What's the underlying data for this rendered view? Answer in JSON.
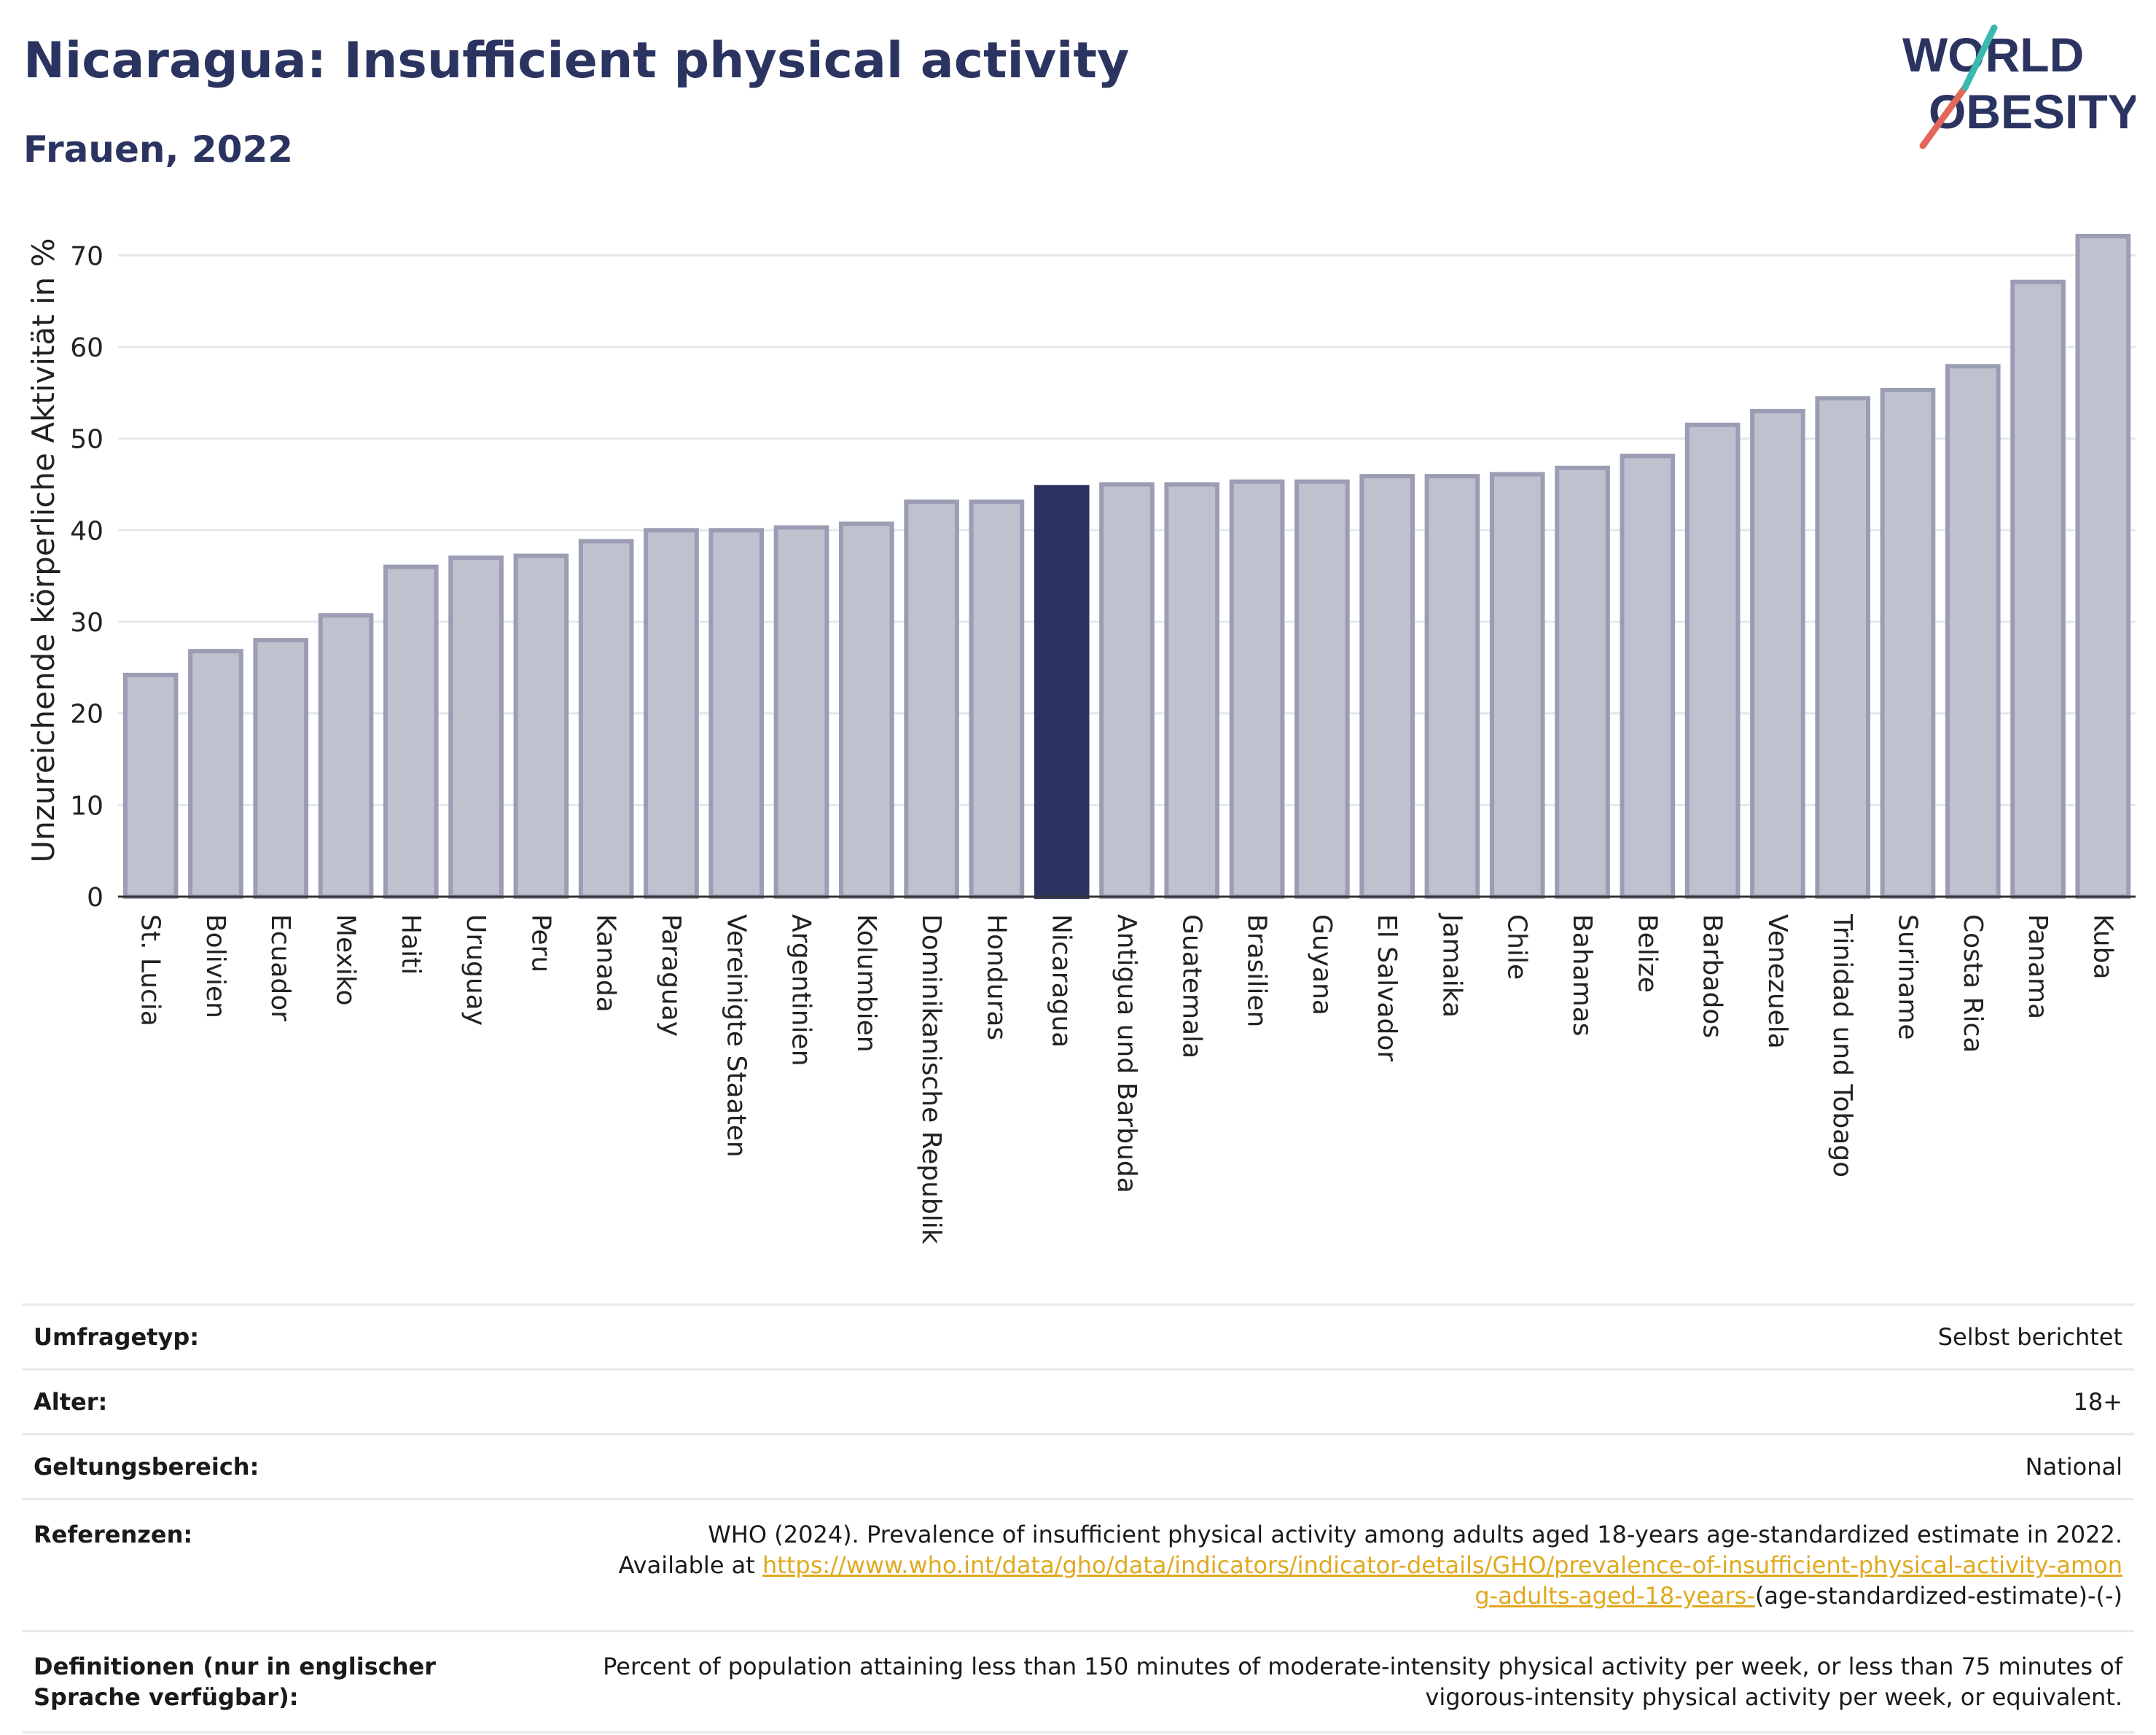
{
  "header": {
    "title": "Nicaragua: Insufficient physical activity",
    "subtitle": "Frauen, 2022"
  },
  "logo": {
    "line1": "WORLD",
    "line2": "OBESITY"
  },
  "colors": {
    "bar_default": "#bfc1ce",
    "bar_default_stroke": "#9a9db3",
    "bar_highlight": "#2b3461",
    "grid": "#e5e7eb",
    "heading": "#2b3461",
    "link": "#e0a91f"
  },
  "chart_data": {
    "type": "bar",
    "ylabel": "Unzureichende körperliche Aktivität in %",
    "ylim": [
      0,
      74
    ],
    "yticks": [
      0,
      10,
      20,
      30,
      40,
      50,
      60,
      70
    ],
    "grid": true,
    "highlight": "Nicaragua",
    "categories": [
      "St. Lucia",
      "Bolivien",
      "Ecuador",
      "Mexiko",
      "Haiti",
      "Uruguay",
      "Peru",
      "Kanada",
      "Paraguay",
      "Vereinigte Staaten",
      "Argentinien",
      "Kolumbien",
      "Dominikanische Republik",
      "Honduras",
      "Nicaragua",
      "Antigua und Barbuda",
      "Guatemala",
      "Brasilien",
      "Guyana",
      "El Salvador",
      "Jamaika",
      "Chile",
      "Bahamas",
      "Belize",
      "Barbados",
      "Venezuela",
      "Trinidad und Tobago",
      "Suriname",
      "Costa Rica",
      "Panama",
      "Kuba"
    ],
    "values": [
      24.2,
      26.8,
      28.0,
      30.7,
      36.0,
      37.0,
      37.2,
      38.8,
      40.0,
      40.0,
      40.3,
      40.7,
      43.1,
      43.1,
      44.7,
      45.0,
      45.0,
      45.3,
      45.3,
      45.9,
      45.9,
      46.1,
      46.8,
      48.1,
      51.5,
      53.0,
      54.4,
      55.3,
      57.9,
      67.1,
      72.1
    ]
  },
  "info": {
    "survey_type": {
      "label": "Umfragetyp:",
      "value": "Selbst berichtet"
    },
    "age": {
      "label": "Alter:",
      "value": "18+"
    },
    "scope": {
      "label": "Geltungsbereich:",
      "value": "National"
    },
    "references": {
      "label": "Referenzen:",
      "text": "WHO (2024). Prevalence of insufficient physical activity among adults aged 18-years age-standardized estimate in 2022. Available at ",
      "link": "https://www.who.int/data/gho/data/indicators/indicator-details/GHO/prevalence-of-insufficient-physical-activity-among-adults-aged-18-years-",
      "suffix": "(age-standardized-estimate)-(-)"
    },
    "definitions": {
      "label": "Definitionen (nur in englischer Sprache verfügbar):",
      "value": "Percent of population attaining less than 150 minutes of moderate-intensity physical activity per week, or less than 75 minutes of vigorous-intensity physical activity per week, or equivalent."
    }
  }
}
